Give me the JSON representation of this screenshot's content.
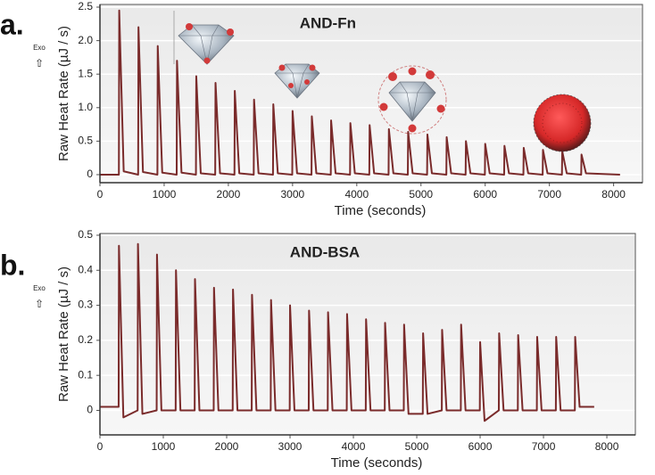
{
  "chart_data": [
    {
      "type": "line",
      "panel_label": "a.",
      "title": "AND-Fn",
      "xlabel": "Time (seconds)",
      "ylabel": "Raw Heat Rate (µJ / s)",
      "exo_label": "Exo",
      "exo_arrow": "⇧",
      "x": [
        0,
        295,
        300,
        370,
        595,
        600,
        670,
        895,
        900,
        970,
        1195,
        1200,
        1270,
        1495,
        1500,
        1570,
        1795,
        1800,
        1870,
        2095,
        2100,
        2170,
        2395,
        2400,
        2470,
        2695,
        2700,
        2770,
        2995,
        3000,
        3070,
        3295,
        3300,
        3370,
        3595,
        3600,
        3670,
        3895,
        3900,
        3970,
        4195,
        4200,
        4270,
        4495,
        4500,
        4570,
        4795,
        4800,
        4870,
        5095,
        5100,
        5170,
        5395,
        5400,
        5470,
        5695,
        5700,
        5770,
        5995,
        6000,
        6070,
        6295,
        6300,
        6370,
        6595,
        6600,
        6670,
        6895,
        6900,
        6970,
        7195,
        7200,
        7270,
        7495,
        7500,
        7570,
        8100
      ],
      "series": [
        {
          "color": "#7a2b2b",
          "values": [
            0,
            0,
            2.45,
            0.05,
            0,
            2.2,
            0.04,
            0,
            1.92,
            0.03,
            0,
            1.7,
            0.03,
            0,
            1.47,
            0.02,
            0,
            1.37,
            0.02,
            0,
            1.25,
            0.02,
            0,
            1.12,
            0.02,
            0,
            1.05,
            0.02,
            0,
            0.95,
            0.02,
            0,
            0.87,
            0.02,
            0,
            0.81,
            0.02,
            0,
            0.77,
            0.02,
            0,
            0.74,
            0.02,
            0,
            0.68,
            0.02,
            0,
            0.64,
            0.02,
            0,
            0.6,
            0.02,
            0,
            0.56,
            0.02,
            0,
            0.5,
            0.02,
            0,
            0.46,
            0.02,
            0,
            0.43,
            0.02,
            0,
            0.4,
            0.02,
            0,
            0.37,
            0.02,
            0,
            0.35,
            0.02,
            0,
            0.3,
            0.02,
            0
          ]
        }
      ],
      "xlim": [
        0,
        8450
      ],
      "xticks": [
        0,
        1000,
        2000,
        3000,
        4000,
        5000,
        6000,
        7000,
        8000
      ],
      "ylim": [
        -0.12,
        2.54
      ],
      "yticks": [
        0,
        0.5,
        {
          "value": 1,
          "label": "1.0"
        },
        1.5,
        {
          "value": 2,
          "label": "2.0"
        },
        2.5
      ],
      "grid": true
    },
    {
      "type": "line",
      "panel_label": "b.",
      "title": "AND-BSA",
      "xlabel": "Time (seconds)",
      "ylabel": "Raw Heat Rate (µJ / s)",
      "exo_label": "Exo",
      "exo_arrow": "⇧",
      "x": [
        0,
        295,
        300,
        370,
        595,
        600,
        670,
        895,
        900,
        970,
        1195,
        1200,
        1270,
        1495,
        1500,
        1570,
        1795,
        1800,
        1870,
        2095,
        2100,
        2170,
        2395,
        2400,
        2470,
        2695,
        2700,
        2770,
        2995,
        3000,
        3070,
        3295,
        3300,
        3370,
        3595,
        3600,
        3670,
        3895,
        3900,
        3970,
        4195,
        4200,
        4270,
        4495,
        4500,
        4570,
        4795,
        4800,
        4870,
        5095,
        5100,
        5170,
        5395,
        5400,
        5470,
        5695,
        5700,
        5770,
        5995,
        6000,
        6070,
        6295,
        6300,
        6370,
        6595,
        6600,
        6670,
        6895,
        6900,
        6970,
        7195,
        7200,
        7270,
        7495,
        7500,
        7570,
        7800
      ],
      "series": [
        {
          "color": "#7a2b2b",
          "values": [
            0.01,
            0.01,
            0.47,
            -0.02,
            0,
            0.475,
            -0.01,
            0,
            0.445,
            0,
            0,
            0.4,
            0,
            0,
            0.375,
            0,
            0,
            0.35,
            0,
            0,
            0.345,
            0,
            0,
            0.33,
            0,
            0,
            0.315,
            0,
            0,
            0.3,
            0,
            0,
            0.285,
            0,
            0,
            0.28,
            0,
            0,
            0.275,
            0,
            0,
            0.26,
            0,
            0,
            0.25,
            0,
            0,
            0.245,
            -0.01,
            -0.01,
            0.22,
            -0.01,
            0,
            0.23,
            0,
            0,
            0.245,
            0,
            0,
            0.195,
            -0.03,
            0,
            0.22,
            0,
            0,
            0.215,
            0,
            0,
            0.21,
            0,
            0,
            0.21,
            0,
            0,
            0.21,
            0.01,
            0.01
          ]
        }
      ],
      "xlim": [
        0,
        8450
      ],
      "xticks": [
        0,
        1000,
        2000,
        3000,
        4000,
        5000,
        6000,
        7000,
        8000
      ],
      "ylim": [
        -0.07,
        0.505
      ],
      "yticks": [
        0,
        0.1,
        0.2,
        0.3,
        0.4,
        0.5
      ],
      "grid": true
    }
  ]
}
